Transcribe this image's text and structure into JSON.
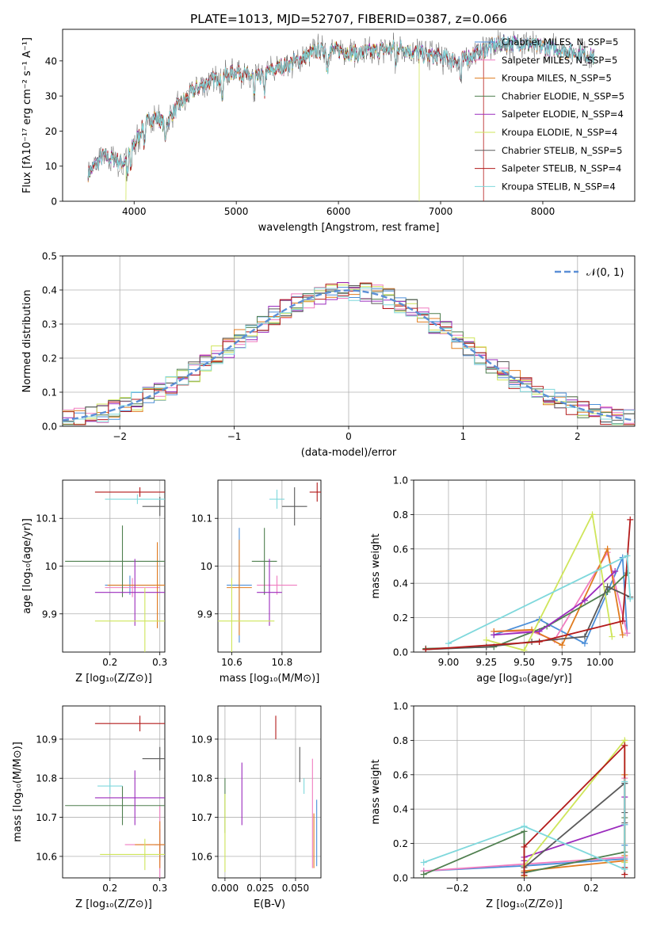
{
  "figure_title": "PLATE=1013, MJD=52707, FIBERID=0387, z=0.066",
  "colors": {
    "chabrier_miles": "#4c8fd9",
    "salpeter_miles": "#f07cc0",
    "kroupa_miles": "#e07b1f",
    "chabrier_elodie": "#4f7f4f",
    "salpeter_elodie": "#9b2bbd",
    "kroupa_elodie": "#cfe55a",
    "chabrier_stelib": "#5a5a5a",
    "salpeter_stelib": "#b31b1b",
    "kroupa_stelib": "#7fd8dc",
    "gauss": "#5b8fd6"
  },
  "chart_data": [
    {
      "type": "line",
      "id": "spectrum",
      "xlabel": "wavelength [Angstrom, rest frame]",
      "ylabel": "Flux [fλ10⁻¹⁷ erg cm⁻² s⁻¹ A⁻¹]",
      "xlim": [
        3300,
        8900
      ],
      "ylim": [
        0,
        49
      ],
      "xticks": [
        4000,
        5000,
        6000,
        7000,
        8000
      ],
      "yticks": [
        0,
        10,
        20,
        30,
        40
      ],
      "grid": false,
      "legend_position": "right",
      "legend": [
        "Chabrier MILES, N_SSP=5",
        "Salpeter MILES, N_SSP=5",
        "Kroupa MILES, N_SSP=5",
        "Chabrier ELODIE, N_SSP=5",
        "Salpeter ELODIE, N_SSP=4",
        "Kroupa ELODIE, N_SSP=4",
        "Chabrier STELIB, N_SSP=5",
        "Salpeter STELIB, N_SSP=4",
        "Kroupa STELIB, N_SSP=4"
      ],
      "continuum": {
        "x": [
          3550,
          3700,
          3900,
          4000,
          4100,
          4200,
          4300,
          4400,
          4600,
          4800,
          5000,
          5200,
          5400,
          5600,
          5800,
          6000,
          6200,
          6400,
          6600,
          6800,
          7000,
          7200,
          7400,
          7600,
          7800,
          8000,
          8200,
          8400,
          8500
        ],
        "y": [
          8,
          13,
          11,
          16,
          22,
          24,
          22,
          26,
          32,
          35,
          37,
          35,
          38,
          40,
          43,
          43,
          42,
          43,
          44,
          42,
          41,
          40,
          43,
          45,
          45,
          44,
          43,
          42,
          41
        ]
      },
      "cutoffs": [
        {
          "series": "Kroupa ELODIE, N_SSP=4",
          "start": 3920
        },
        {
          "series": "Kroupa ELODIE, N_SSP=4",
          "end": 6790
        },
        {
          "series": "Salpeter STELIB, N_SSP=4",
          "end": 7420
        }
      ]
    },
    {
      "type": "line",
      "id": "residuals",
      "xlabel": "(data-model)/error",
      "ylabel": "Normed distribution",
      "xlim": [
        -2.5,
        2.5
      ],
      "ylim": [
        0,
        0.5
      ],
      "xticks": [
        -2,
        -1,
        0,
        1,
        2
      ],
      "xtick_labels": [
        "−2",
        "−1",
        "0",
        "1",
        "2"
      ],
      "yticks": [
        0.0,
        0.1,
        0.2,
        0.3,
        0.4,
        0.5
      ],
      "ytick_labels": [
        "0.0",
        "0.1",
        "0.2",
        "0.3",
        "0.4",
        "0.5"
      ],
      "grid": true,
      "legend": [
        "𝒩(0, 1)"
      ],
      "legend_position": "top-right",
      "gauss": {
        "mean": 0,
        "sigma": 1
      }
    },
    {
      "type": "scatter",
      "id": "age_vs_Z",
      "xlabel": "Z [log₁₀(Z/Z⊙)]",
      "ylabel": "age  [log₁₀(age/yr)]",
      "xlim": [
        0.105,
        0.31
      ],
      "ylim": [
        9.82,
        10.18
      ],
      "xticks": [
        0.2,
        0.3
      ],
      "yticks": [
        9.9,
        10.0,
        10.1
      ],
      "grid": true,
      "points": [
        {
          "model": "Chabrier MILES",
          "x": 0.24,
          "y": 9.96,
          "xerr": 0.05,
          "yerr": 0.02
        },
        {
          "model": "Salpeter MILES",
          "x": 0.245,
          "y": 9.955,
          "xerr": 0.055,
          "yerr": 0.02
        },
        {
          "model": "Kroupa MILES",
          "x": 0.295,
          "y": 9.96,
          "xerr": 0.1,
          "yerr": 0.09
        },
        {
          "model": "Chabrier ELODIE",
          "x": 0.225,
          "y": 10.01,
          "xerr": 0.115,
          "yerr": 0.075
        },
        {
          "model": "Salpeter ELODIE",
          "x": 0.25,
          "y": 9.945,
          "xerr": 0.08,
          "yerr": 0.07
        },
        {
          "model": "Kroupa ELODIE",
          "x": 0.27,
          "y": 9.885,
          "xerr": 0.1,
          "yerr": 0.07
        },
        {
          "model": "Chabrier STELIB",
          "x": 0.3,
          "y": 10.125,
          "xerr": 0.035,
          "yerr": 0.02
        },
        {
          "model": "Salpeter STELIB",
          "x": 0.26,
          "y": 10.155,
          "xerr": 0.09,
          "yerr": 0.01
        },
        {
          "model": "Kroupa STELIB",
          "x": 0.255,
          "y": 10.14,
          "xerr": 0.065,
          "yerr": 0.01
        }
      ]
    },
    {
      "type": "scatter",
      "id": "age_vs_mass",
      "xlabel": "mass [log₁₀(M/M⊙)]",
      "xlim": [
        10.545,
        10.955
      ],
      "ylim": [
        9.82,
        10.18
      ],
      "xticks": [
        10.6,
        10.8
      ],
      "yticks": [
        9.9,
        10.0,
        10.1
      ],
      "grid": true,
      "points": [
        {
          "model": "Chabrier MILES",
          "x": 10.63,
          "y": 9.96,
          "xerr": 0.05,
          "yerr": 0.12
        },
        {
          "model": "Salpeter MILES",
          "x": 10.78,
          "y": 9.96,
          "xerr": 0.08,
          "yerr": 0.02
        },
        {
          "model": "Kroupa MILES",
          "x": 10.63,
          "y": 9.955,
          "xerr": 0.05,
          "yerr": 0.1
        },
        {
          "model": "Chabrier ELODIE",
          "x": 10.73,
          "y": 10.01,
          "xerr": 0.05,
          "yerr": 0.07
        },
        {
          "model": "Salpeter ELODIE",
          "x": 10.75,
          "y": 9.945,
          "xerr": 0.05,
          "yerr": 0.07
        },
        {
          "model": "Kroupa ELODIE",
          "x": 10.6,
          "y": 9.885,
          "xerr": 0.17,
          "yerr": 0.09
        },
        {
          "model": "Chabrier STELIB",
          "x": 10.85,
          "y": 10.125,
          "xerr": 0.05,
          "yerr": 0.04
        },
        {
          "model": "Salpeter STELIB",
          "x": 10.94,
          "y": 10.155,
          "xerr": 0.03,
          "yerr": 0.02
        },
        {
          "model": "Kroupa STELIB",
          "x": 10.78,
          "y": 10.14,
          "xerr": 0.03,
          "yerr": 0.02
        }
      ]
    },
    {
      "type": "line",
      "id": "weight_vs_age",
      "xlabel": "age  [log₁₀(age/yr)]",
      "ylabel": "mass weight",
      "xlim": [
        8.77,
        10.23
      ],
      "ylim": [
        0,
        1
      ],
      "xticks": [
        9.0,
        9.25,
        9.5,
        9.75,
        10.0
      ],
      "xtick_labels": [
        "9.00",
        "9.25",
        "9.50",
        "9.75",
        "10.00"
      ],
      "yticks": [
        0.0,
        0.2,
        0.4,
        0.6,
        0.8,
        1.0
      ],
      "ytick_labels": [
        "0.0",
        "0.2",
        "0.4",
        "0.6",
        "0.8",
        "1.0"
      ],
      "grid": true,
      "series": [
        {
          "model": "Chabrier MILES",
          "x": [
            9.3,
            9.6,
            9.9,
            10.15,
            10.18
          ],
          "y": [
            0.1,
            0.19,
            0.05,
            0.55,
            0.11
          ]
        },
        {
          "model": "Salpeter MILES",
          "x": [
            9.3,
            9.55,
            9.7,
            10.05,
            10.18
          ],
          "y": [
            0.12,
            0.12,
            0.07,
            0.58,
            0.11
          ]
        },
        {
          "model": "Kroupa MILES",
          "x": [
            9.3,
            9.55,
            9.75,
            10.05,
            10.15
          ],
          "y": [
            0.12,
            0.13,
            0.04,
            0.6,
            0.1
          ]
        },
        {
          "model": "Chabrier ELODIE",
          "x": [
            8.85,
            9.3,
            9.65,
            10.05,
            10.18
          ],
          "y": [
            0.02,
            0.03,
            0.15,
            0.35,
            0.46
          ]
        },
        {
          "model": "Salpeter ELODIE",
          "x": [
            9.3,
            9.6,
            9.9,
            10.1
          ],
          "y": [
            0.1,
            0.12,
            0.3,
            0.47
          ]
        },
        {
          "model": "Kroupa ELODIE",
          "x": [
            9.25,
            9.5,
            9.95,
            10.08
          ],
          "y": [
            0.07,
            0.01,
            0.8,
            0.09
          ]
        },
        {
          "model": "Chabrier STELIB",
          "x": [
            8.85,
            9.25,
            9.55,
            9.9,
            10.05,
            10.2
          ],
          "y": [
            0.015,
            0.03,
            0.06,
            0.09,
            0.38,
            0.32
          ]
        },
        {
          "model": "Salpeter STELIB",
          "x": [
            8.85,
            9.6,
            10.15,
            10.2
          ],
          "y": [
            0.015,
            0.06,
            0.18,
            0.77
          ]
        },
        {
          "model": "Kroupa STELIB",
          "x": [
            9.0,
            10.18,
            10.2
          ],
          "y": [
            0.05,
            0.56,
            0.31
          ]
        }
      ]
    },
    {
      "type": "scatter",
      "id": "mass_vs_Z",
      "xlabel": "Z [log₁₀(Z/Z⊙)]",
      "ylabel": "mass [log₁₀(M/M⊙)]",
      "xlim": [
        0.105,
        0.31
      ],
      "ylim": [
        10.545,
        10.985
      ],
      "xticks": [
        0.2,
        0.3
      ],
      "yticks": [
        10.6,
        10.7,
        10.8,
        10.9
      ],
      "grid": true,
      "points": [
        {
          "model": "Chabrier MILES",
          "x": 0.3,
          "y": 10.63,
          "xerr": 0.01,
          "yerr": 0.04
        },
        {
          "model": "Salpeter MILES",
          "x": 0.3,
          "y": 10.63,
          "xerr": 0.07,
          "yerr": 0.1
        },
        {
          "model": "Kroupa MILES",
          "x": 0.3,
          "y": 10.63,
          "xerr": 0.05,
          "yerr": 0.06
        },
        {
          "model": "Chabrier ELODIE",
          "x": 0.225,
          "y": 10.73,
          "xerr": 0.115,
          "yerr": 0.05
        },
        {
          "model": "Salpeter ELODIE",
          "x": 0.25,
          "y": 10.75,
          "xerr": 0.08,
          "yerr": 0.07
        },
        {
          "model": "Kroupa ELODIE",
          "x": 0.27,
          "y": 10.605,
          "xerr": 0.09,
          "yerr": 0.04
        },
        {
          "model": "Chabrier STELIB",
          "x": 0.3,
          "y": 10.85,
          "xerr": 0.035,
          "yerr": 0.03
        },
        {
          "model": "Salpeter STELIB",
          "x": 0.26,
          "y": 10.94,
          "xerr": 0.09,
          "yerr": 0.02
        },
        {
          "model": "Kroupa STELIB",
          "x": 0.2,
          "y": 10.78,
          "xerr": 0.025,
          "yerr": 0.02
        }
      ]
    },
    {
      "type": "scatter",
      "id": "mass_vs_ebv",
      "xlabel": "E(B-V)",
      "xlim": [
        -0.005,
        0.068
      ],
      "ylim": [
        10.545,
        10.985
      ],
      "xticks": [
        0.0,
        0.025,
        0.05
      ],
      "xtick_labels": [
        "0.000",
        "0.025",
        "0.050"
      ],
      "yticks": [
        10.6,
        10.7,
        10.8,
        10.9
      ],
      "grid": true,
      "points": [
        {
          "model": "Chabrier MILES",
          "x": 0.065,
          "y": 10.66,
          "yerr": 0.085
        },
        {
          "model": "Salpeter MILES",
          "x": 0.062,
          "y": 10.71,
          "yerr": 0.14
        },
        {
          "model": "Kroupa MILES",
          "x": 0.063,
          "y": 10.64,
          "yerr": 0.07
        },
        {
          "model": "Chabrier ELODIE",
          "x": 0.0,
          "y": 10.73,
          "yerr": 0.07
        },
        {
          "model": "Salpeter ELODIE",
          "x": 0.012,
          "y": 10.76,
          "yerr": 0.08
        },
        {
          "model": "Kroupa ELODIE",
          "x": 0.0,
          "y": 10.66,
          "yerr": 0.1
        },
        {
          "model": "Chabrier STELIB",
          "x": 0.053,
          "y": 10.835,
          "yerr": 0.045
        },
        {
          "model": "Salpeter STELIB",
          "x": 0.036,
          "y": 10.93,
          "yerr": 0.03
        },
        {
          "model": "Kroupa STELIB",
          "x": 0.056,
          "y": 10.78,
          "yerr": 0.02
        }
      ]
    },
    {
      "type": "line",
      "id": "weight_vs_Z",
      "xlabel": "Z [log₁₀(Z/Z⊙)]",
      "ylabel": "mass weight",
      "xlim": [
        -0.33,
        0.33
      ],
      "ylim": [
        0,
        1
      ],
      "xticks": [
        -0.2,
        0.0,
        0.2
      ],
      "xtick_labels": [
        "−0.2",
        "0.0",
        "0.2"
      ],
      "yticks": [
        0.0,
        0.2,
        0.4,
        0.6,
        0.8,
        1.0
      ],
      "ytick_labels": [
        "0.0",
        "0.2",
        "0.4",
        "0.6",
        "0.8",
        "1.0"
      ],
      "grid": true,
      "series": [
        {
          "model": "Chabrier MILES",
          "x": [
            -0.3,
            0.0,
            0.3,
            0.3,
            0.3
          ],
          "y": [
            0.04,
            0.07,
            0.11,
            0.19,
            0.55
          ]
        },
        {
          "model": "Salpeter MILES",
          "x": [
            -0.3,
            0.0,
            0.3,
            0.3
          ],
          "y": [
            0.04,
            0.08,
            0.12,
            0.58
          ]
        },
        {
          "model": "Kroupa MILES",
          "x": [
            0.0,
            0.3,
            0.3,
            0.3
          ],
          "y": [
            0.04,
            0.1,
            0.13,
            0.6
          ]
        },
        {
          "model": "Chabrier ELODIE",
          "x": [
            -0.3,
            0.0,
            0.0,
            0.3,
            0.3
          ],
          "y": [
            0.02,
            0.27,
            0.03,
            0.15,
            0.35
          ]
        },
        {
          "model": "Salpeter ELODIE",
          "x": [
            0.0,
            0.0,
            0.3,
            0.3
          ],
          "y": [
            0.1,
            0.12,
            0.31,
            0.47
          ]
        },
        {
          "model": "Kroupa ELODIE",
          "x": [
            0.0,
            0.0,
            0.3,
            0.3
          ],
          "y": [
            0.01,
            0.07,
            0.8,
            0.09
          ]
        },
        {
          "model": "Chabrier STELIB",
          "x": [
            0.0,
            0.0,
            0.3,
            0.3,
            0.3
          ],
          "y": [
            0.03,
            0.06,
            0.55,
            0.38,
            0.32
          ]
        },
        {
          "model": "Salpeter STELIB",
          "x": [
            0.0,
            0.0,
            0.3,
            0.3,
            0.3
          ],
          "y": [
            0.015,
            0.18,
            0.77,
            0.06,
            0.02
          ]
        },
        {
          "model": "Kroupa STELIB",
          "x": [
            -0.3,
            0.0,
            0.3,
            0.3,
            0.3
          ],
          "y": [
            0.09,
            0.3,
            0.05,
            0.56,
            0.31
          ]
        }
      ]
    }
  ]
}
